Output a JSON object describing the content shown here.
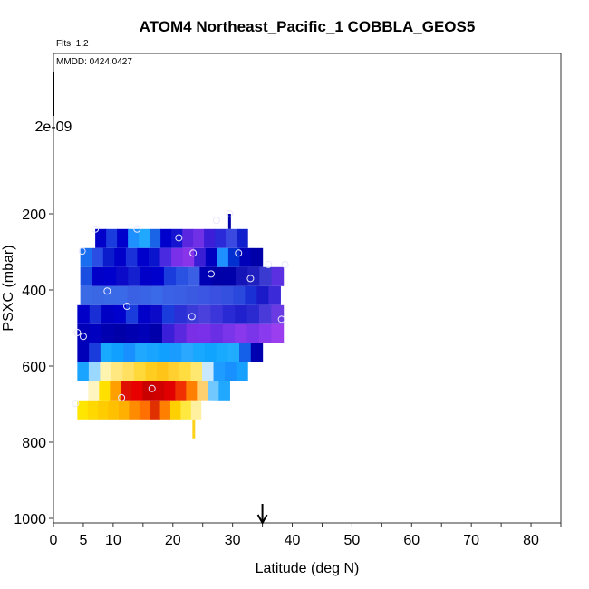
{
  "chart_data": {
    "type": "heatmap",
    "title": "ATOM4 Northeast_Pacific_1 COBBLA_GEOS5",
    "flights_note": "Flts: 1,2",
    "date_note": "MMDD: 0424,0427",
    "xlabel": "Latitude (deg N)",
    "ylabel": "PSXC (mbar)",
    "xlim": [
      0,
      85
    ],
    "ylim": [
      1000,
      100
    ],
    "x_ticks": [
      0,
      5,
      10,
      20,
      30,
      40,
      50,
      60,
      70,
      80
    ],
    "y_ticks": [
      200,
      400,
      600,
      800,
      1000
    ],
    "colorbar_tick": "2e-09",
    "arrow_latitude": 35,
    "colors": {
      "deep_blue": "#0000cc",
      "mid_blue": "#3a5fe0",
      "light_blue": "#17aaff",
      "violet": "#7a2ee6",
      "yellow": "#ffd21a",
      "orange": "#ff8c00",
      "red": "#e00000"
    },
    "rows": [
      {
        "p_top": 240,
        "p_bot": 290,
        "x0": 7,
        "x1": 32.5,
        "colors": [
          "#0000c8",
          "#1a3cdc",
          "#0000cc",
          "#1e90ff",
          "#20a8ff",
          "#1a64e8",
          "#0000cc",
          "#1414d0",
          "#5a26e0",
          "#7030e6",
          "#3c1ed8",
          "#2a2ad8",
          "#3a4ae0",
          "#1020cc"
        ]
      },
      {
        "p_top": 290,
        "p_bot": 340,
        "x0": 4.5,
        "x1": 35,
        "colors": [
          "#1a6ef0",
          "#2a4ee4",
          "#0a1ccc",
          "#0000c8",
          "#1a30d8",
          "#0000cc",
          "#0a14cc",
          "#4a2ae0",
          "#7a30e8",
          "#8a34ea",
          "#3a1ed6",
          "#0000c0",
          "#1e90ff",
          "#0030d0",
          "#0000b8",
          "#0000a8"
        ]
      },
      {
        "p_top": 340,
        "p_bot": 390,
        "x0": 4.5,
        "x1": 38.5,
        "colors": [
          "#1a4ee0",
          "#0000c8",
          "#0000cc",
          "#0a0ac8",
          "#1420d0",
          "#0000c8",
          "#0000cc",
          "#1a3cdc",
          "#2a52e2",
          "#3a5ee4",
          "#0000b4",
          "#0000a8",
          "#0000aa",
          "#1414b8",
          "#2020c0",
          "#3a3ad0",
          "#5a30e0"
        ]
      },
      {
        "p_top": 390,
        "p_bot": 440,
        "x0": 4.5,
        "x1": 38,
        "colors": [
          "#3a6ae6",
          "#3a68e4",
          "#3a6ae6",
          "#3a6ae8",
          "#3a60e4",
          "#3a64e6",
          "#3a6ae8",
          "#3a62e6",
          "#3a5ee4",
          "#3a5ae2",
          "#3a56e2",
          "#3a50e0",
          "#3450de",
          "#2a48dc",
          "#1a30d4",
          "#1a1ac8",
          "#3a2ad8"
        ]
      },
      {
        "p_top": 440,
        "p_bot": 490,
        "x0": 4,
        "x1": 38.5,
        "colors": [
          "#0000c8",
          "#1a2ed6",
          "#0000c4",
          "#0000cc",
          "#1a3cdc",
          "#0000c8",
          "#0a0ac8",
          "#1a3cdc",
          "#2a30d6",
          "#3a3ad8",
          "#4a40dc",
          "#3a36da",
          "#2a2ad4",
          "#2020cc",
          "#2a2ad0",
          "#4a3ada",
          "#6a3ae2"
        ]
      },
      {
        "p_top": 490,
        "p_bot": 540,
        "x0": 4,
        "x1": 38.5,
        "colors": [
          "#0000b8",
          "#0000c0",
          "#0000b0",
          "#0000a8",
          "#0000b0",
          "#0000b8",
          "#0000aa",
          "#3a1ed8",
          "#5a28de",
          "#7a2ee6",
          "#7a30e8",
          "#6a2ee4",
          "#7a34ea",
          "#8a38ec",
          "#7a34ea",
          "#8a3aee",
          "#9a3ef0"
        ]
      },
      {
        "p_top": 540,
        "p_bot": 590,
        "x0": 4,
        "x1": 35,
        "colors": [
          "#0000b8",
          "#1a3cdc",
          "#17aaff",
          "#10a0ff",
          "#1890ff",
          "#20a8ff",
          "#18a4ff",
          "#10a0ff",
          "#1a9cff",
          "#2aa8ff",
          "#18a8ff",
          "#10a4ff",
          "#18aaff",
          "#20acff",
          "#1460e8",
          "#0000b0"
        ]
      },
      {
        "p_top": 590,
        "p_bot": 640,
        "x0": 4,
        "x1": 32.5,
        "colors": [
          "#1aa4ff",
          "#9ad8ff",
          "#fff3b0",
          "#ffe880",
          "#ffe060",
          "#ffd83a",
          "#ffcc20",
          "#ffc418",
          "#ffd030",
          "#ffdc40",
          "#ffe870",
          "#c8e8ff",
          "#1e9cff",
          "#1890ff",
          "#18a0ff"
        ]
      },
      {
        "p_top": 640,
        "p_bot": 690,
        "x0": 4,
        "x1": 29.5,
        "colors": [
          "#ffffff",
          "#fff5c0",
          "#ffe000",
          "#ffa000",
          "#e01000",
          "#e80000",
          "#c80000",
          "#d00000",
          "#e00000",
          "#f03000",
          "#ff8000",
          "#ffd070",
          "#70c8ff",
          "#20a8ff"
        ]
      },
      {
        "p_top": 690,
        "p_bot": 740,
        "x0": 4,
        "x1": 26.5,
        "colors": [
          "#ffe600",
          "#ffd800",
          "#ffcc00",
          "#ffc000",
          "#ffb000",
          "#ff8c00",
          "#ff7000",
          "#e03000",
          "#ff8000",
          "#ffd000",
          "#ffe840",
          "#fff0a0",
          "#ffffff"
        ]
      }
    ],
    "spikes": [
      {
        "x": 29.5,
        "p_top": 200,
        "p_bot": 240,
        "color": "#0000aa"
      },
      {
        "x": 23.5,
        "p_top": 740,
        "p_bot": 790,
        "color": "#ffd21a"
      }
    ],
    "points": [
      {
        "x": 29.5,
        "p": 200
      },
      {
        "x": 27.3,
        "p": 217
      },
      {
        "x": 14,
        "p": 240
      },
      {
        "x": 7,
        "p": 240
      },
      {
        "x": 21,
        "p": 263
      },
      {
        "x": 4.8,
        "p": 298
      },
      {
        "x": 23.4,
        "p": 303
      },
      {
        "x": 31,
        "p": 303
      },
      {
        "x": 36,
        "p": 333
      },
      {
        "x": 38.8,
        "p": 333
      },
      {
        "x": 26.4,
        "p": 358
      },
      {
        "x": 33,
        "p": 370
      },
      {
        "x": 9,
        "p": 403
      },
      {
        "x": 12.3,
        "p": 443
      },
      {
        "x": 23.2,
        "p": 470
      },
      {
        "x": 38.2,
        "p": 477
      },
      {
        "x": 4,
        "p": 512
      },
      {
        "x": 5,
        "p": 522
      },
      {
        "x": 11.4,
        "p": 683
      },
      {
        "x": 16.5,
        "p": 659
      },
      {
        "x": 3.7,
        "p": 698
      }
    ]
  }
}
